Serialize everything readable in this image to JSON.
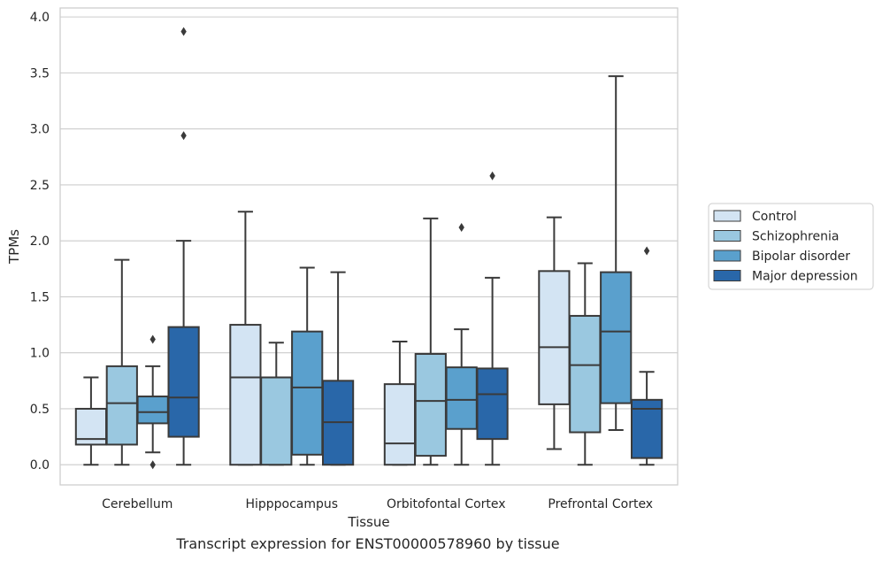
{
  "caption": "Transcript expression for ENST00000578960 by tissue",
  "chart_data": {
    "type": "box",
    "xlabel": "Tissue",
    "ylabel": "TPMs",
    "ylim": [
      -0.18,
      4.08
    ],
    "yticks": [
      "0.0",
      "0.5",
      "1.0",
      "1.5",
      "2.0",
      "2.5",
      "3.0",
      "3.5",
      "4.0"
    ],
    "grid": true,
    "legend_position": "right",
    "categories": [
      "Cerebellum",
      "Hipppocampus",
      "Orbitofontal Cortex",
      "Prefrontal Cortex"
    ],
    "series": [
      {
        "name": "Control",
        "color": "#d3e4f3",
        "boxes": [
          {
            "min": 0.0,
            "q1": 0.18,
            "median": 0.23,
            "q3": 0.5,
            "max": 0.78,
            "outliers": []
          },
          {
            "min": 0.0,
            "q1": 0.0,
            "median": 0.78,
            "q3": 1.25,
            "max": 2.26,
            "outliers": []
          },
          {
            "min": 0.0,
            "q1": 0.0,
            "median": 0.19,
            "q3": 0.72,
            "max": 1.1,
            "outliers": []
          },
          {
            "min": 0.14,
            "q1": 0.54,
            "median": 1.05,
            "q3": 1.73,
            "max": 2.21,
            "outliers": []
          }
        ]
      },
      {
        "name": "Schizophrenia",
        "color": "#9ac8e0",
        "boxes": [
          {
            "min": 0.0,
            "q1": 0.18,
            "median": 0.55,
            "q3": 0.88,
            "max": 1.83,
            "outliers": []
          },
          {
            "min": 0.0,
            "q1": 0.0,
            "median": 0.78,
            "q3": 0.78,
            "max": 1.09,
            "outliers": []
          },
          {
            "min": 0.0,
            "q1": 0.08,
            "median": 0.57,
            "q3": 0.99,
            "max": 2.2,
            "outliers": []
          },
          {
            "min": 0.0,
            "q1": 0.29,
            "median": 0.89,
            "q3": 1.33,
            "max": 1.8,
            "outliers": []
          }
        ]
      },
      {
        "name": "Bipolar disorder",
        "color": "#5aa0cd",
        "boxes": [
          {
            "min": 0.11,
            "q1": 0.37,
            "median": 0.47,
            "q3": 0.61,
            "max": 0.88,
            "outliers": [
              1.12,
              0.0
            ]
          },
          {
            "min": 0.0,
            "q1": 0.09,
            "median": 0.69,
            "q3": 1.19,
            "max": 1.76,
            "outliers": []
          },
          {
            "min": 0.0,
            "q1": 0.32,
            "median": 0.58,
            "q3": 0.87,
            "max": 1.21,
            "outliers": [
              2.12
            ]
          },
          {
            "min": 0.31,
            "q1": 0.55,
            "median": 1.19,
            "q3": 1.72,
            "max": 3.47,
            "outliers": []
          }
        ]
      },
      {
        "name": "Major depression",
        "color": "#2967a9",
        "boxes": [
          {
            "min": 0.0,
            "q1": 0.25,
            "median": 0.6,
            "q3": 1.23,
            "max": 2.0,
            "outliers": [
              2.94,
              3.87
            ]
          },
          {
            "min": 0.0,
            "q1": 0.0,
            "median": 0.38,
            "q3": 0.75,
            "max": 1.72,
            "outliers": []
          },
          {
            "min": 0.0,
            "q1": 0.23,
            "median": 0.63,
            "q3": 0.86,
            "max": 1.67,
            "outliers": [
              2.58
            ]
          },
          {
            "min": 0.0,
            "q1": 0.06,
            "median": 0.5,
            "q3": 0.58,
            "max": 0.83,
            "outliers": [
              1.91
            ]
          }
        ]
      }
    ]
  }
}
